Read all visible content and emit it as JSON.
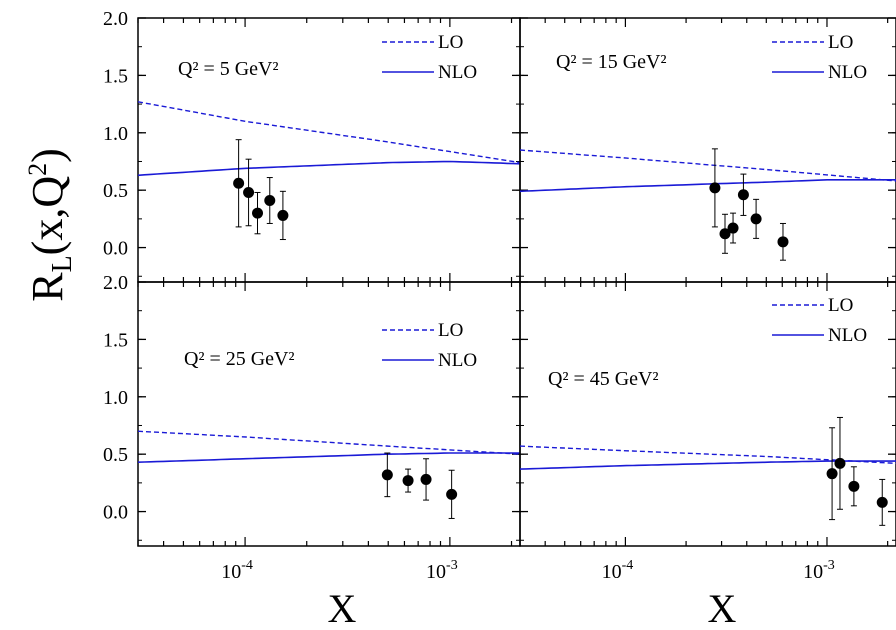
{
  "chart_data": {
    "type": "scatter",
    "ylabel_main": "R",
    "ylabel_sub": "L",
    "ylabel_args": "(x,Q",
    "ylabel_sup": "2",
    "ylabel_close": ")",
    "xlabels": [
      "X",
      "X"
    ],
    "x_log": true,
    "xlim": [
      3e-05,
      0.0022
    ],
    "ylim": [
      -0.3,
      2.0
    ],
    "y_ticks": [
      "2.0",
      "1.5",
      "1.0",
      "0.5",
      "0.0"
    ],
    "y_tick_values": [
      2.0,
      1.5,
      1.0,
      0.5,
      0.0
    ],
    "x_ticks": [
      {
        "value": 0.0001,
        "base": "10",
        "exp": "-4"
      },
      {
        "value": 0.001,
        "base": "10",
        "exp": "-3"
      }
    ],
    "panels": [
      {
        "q2_text": "Q² = 5 GeV²",
        "legend": [
          {
            "label": "LO",
            "style": "dashed"
          },
          {
            "label": "NLO",
            "style": "solid"
          }
        ],
        "lo_curve": {
          "x": [
            3e-05,
            0.0001,
            0.0005,
            0.0022
          ],
          "y": [
            1.27,
            1.1,
            0.92,
            0.74
          ]
        },
        "nlo_curve": {
          "x": [
            3e-05,
            0.0001,
            0.0005,
            0.001,
            0.0022
          ],
          "y": [
            0.63,
            0.69,
            0.74,
            0.75,
            0.73
          ]
        },
        "points": {
          "x": [
            9.3e-05,
            0.000104,
            0.000115,
            0.000132,
            0.000153
          ],
          "y": [
            0.56,
            0.48,
            0.3,
            0.41,
            0.28
          ],
          "err": [
            0.38,
            0.29,
            0.18,
            0.2,
            0.21
          ]
        }
      },
      {
        "q2_text": "Q² = 15 GeV²",
        "legend": [
          {
            "label": "LO",
            "style": "dashed"
          },
          {
            "label": "NLO",
            "style": "solid"
          }
        ],
        "lo_curve": {
          "x": [
            3e-05,
            0.0001,
            0.0005,
            0.0022
          ],
          "y": [
            0.85,
            0.78,
            0.68,
            0.58
          ]
        },
        "nlo_curve": {
          "x": [
            3e-05,
            0.0001,
            0.0005,
            0.001,
            0.0022
          ],
          "y": [
            0.49,
            0.53,
            0.57,
            0.59,
            0.59
          ]
        },
        "points": {
          "x": [
            0.000278,
            0.000312,
            0.000342,
            0.000385,
            0.000445,
            0.000605
          ],
          "y": [
            0.52,
            0.12,
            0.17,
            0.46,
            0.25,
            0.05
          ],
          "err": [
            0.34,
            0.17,
            0.13,
            0.18,
            0.17,
            0.16
          ]
        }
      },
      {
        "q2_text": "Q² = 25 GeV²",
        "legend": [
          {
            "label": "LO",
            "style": "dashed"
          },
          {
            "label": "NLO",
            "style": "solid"
          }
        ],
        "lo_curve": {
          "x": [
            3e-05,
            0.0001,
            0.0005,
            0.0022
          ],
          "y": [
            0.7,
            0.65,
            0.57,
            0.5
          ]
        },
        "nlo_curve": {
          "x": [
            3e-05,
            0.0001,
            0.0005,
            0.001,
            0.0022
          ],
          "y": [
            0.43,
            0.46,
            0.5,
            0.51,
            0.51
          ]
        },
        "points": {
          "x": [
            0.000495,
            0.000625,
            0.000765,
            0.00102
          ],
          "y": [
            0.32,
            0.27,
            0.28,
            0.15
          ],
          "err": [
            0.19,
            0.1,
            0.18,
            0.21
          ]
        }
      },
      {
        "q2_text": "Q² = 45 GeV²",
        "legend": [
          {
            "label": "LO",
            "style": "dashed"
          },
          {
            "label": "NLO",
            "style": "solid"
          }
        ],
        "lo_curve": {
          "x": [
            3e-05,
            0.0001,
            0.0005,
            0.0022
          ],
          "y": [
            0.57,
            0.53,
            0.48,
            0.42
          ]
        },
        "nlo_curve": {
          "x": [
            3e-05,
            0.0001,
            0.0005,
            0.001,
            0.0022
          ],
          "y": [
            0.37,
            0.4,
            0.43,
            0.44,
            0.44
          ]
        },
        "points": {
          "x": [
            0.00106,
            0.00116,
            0.00136,
            0.00188
          ],
          "y": [
            0.33,
            0.42,
            0.22,
            0.08
          ],
          "err": [
            0.4,
            0.4,
            0.17,
            0.2
          ]
        }
      }
    ]
  }
}
